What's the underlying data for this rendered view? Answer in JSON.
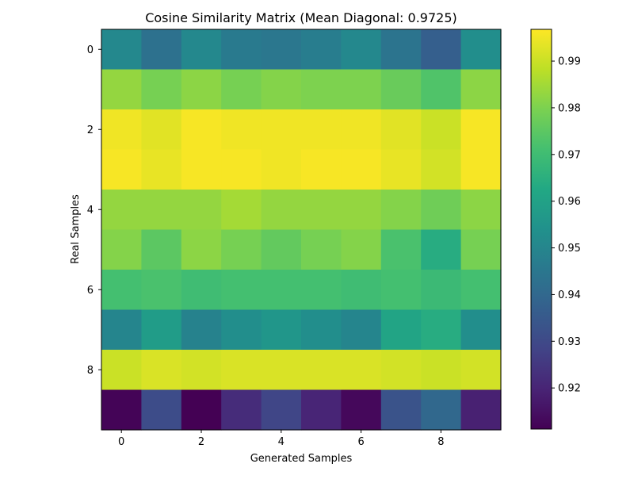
{
  "chart_data": {
    "type": "heatmap",
    "title": "Cosine Similarity Matrix (Mean Diagonal: 0.9725)",
    "xlabel": "Generated Samples",
    "ylabel": "Real Samples",
    "x_ticks": [
      "0",
      "2",
      "4",
      "6",
      "8"
    ],
    "y_ticks": [
      "0",
      "2",
      "4",
      "6",
      "8"
    ],
    "colorbar_ticks": [
      "0.92",
      "0.93",
      "0.94",
      "0.95",
      "0.96",
      "0.97",
      "0.98",
      "0.99"
    ],
    "colormap": "viridis",
    "vmin": 0.9112,
    "vmax": 0.9968,
    "rows": 10,
    "cols": 10,
    "values": [
      [
        0.951,
        0.943,
        0.951,
        0.946,
        0.945,
        0.947,
        0.951,
        0.944,
        0.937,
        0.953
      ],
      [
        0.983,
        0.979,
        0.982,
        0.979,
        0.981,
        0.98,
        0.98,
        0.977,
        0.973,
        0.982
      ],
      [
        0.995,
        0.993,
        0.996,
        0.995,
        0.995,
        0.995,
        0.995,
        0.993,
        0.99,
        0.996
      ],
      [
        0.996,
        0.994,
        0.996,
        0.996,
        0.995,
        0.996,
        0.996,
        0.994,
        0.991,
        0.996
      ],
      [
        0.983,
        0.983,
        0.983,
        0.985,
        0.983,
        0.983,
        0.983,
        0.981,
        0.978,
        0.982
      ],
      [
        0.981,
        0.975,
        0.982,
        0.979,
        0.976,
        0.979,
        0.981,
        0.972,
        0.964,
        0.979
      ],
      [
        0.971,
        0.972,
        0.97,
        0.971,
        0.971,
        0.971,
        0.97,
        0.971,
        0.969,
        0.971
      ],
      [
        0.95,
        0.958,
        0.949,
        0.953,
        0.956,
        0.953,
        0.95,
        0.961,
        0.964,
        0.953
      ],
      [
        0.99,
        0.992,
        0.991,
        0.992,
        0.992,
        0.992,
        0.992,
        0.991,
        0.99,
        0.991
      ],
      [
        0.912,
        0.931,
        0.911,
        0.922,
        0.929,
        0.92,
        0.913,
        0.933,
        0.94,
        0.919
      ]
    ]
  }
}
